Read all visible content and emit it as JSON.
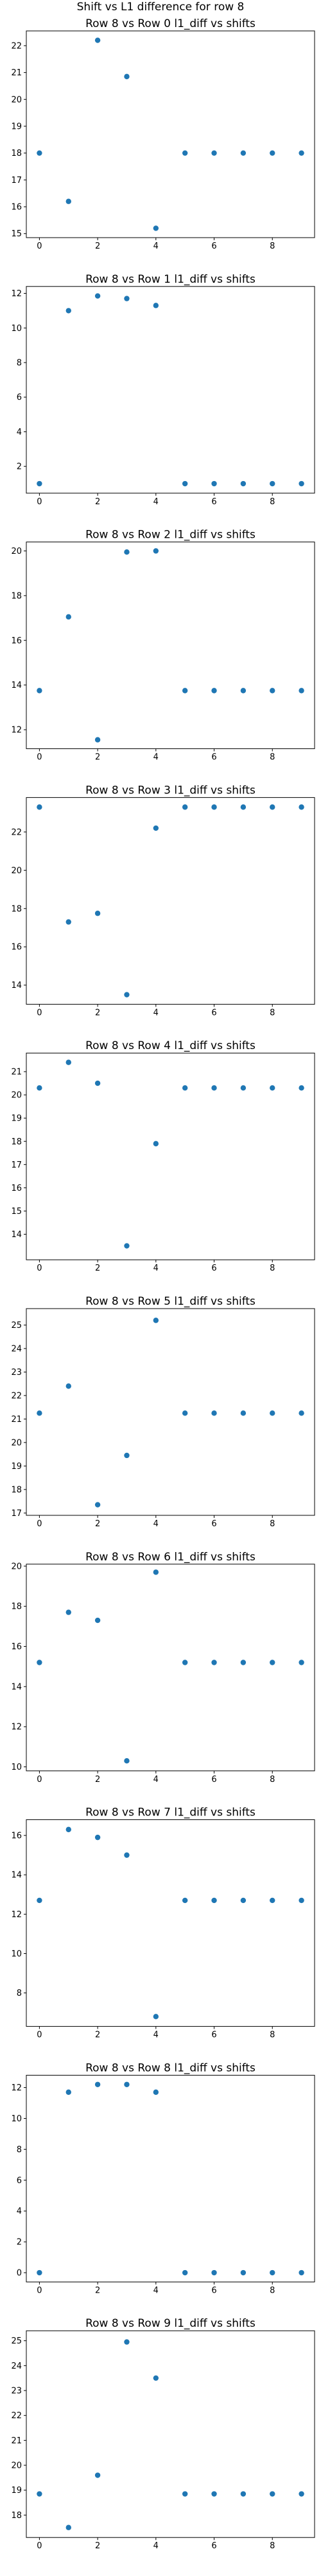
{
  "suptitle": "Shift vs L1 difference for row 8",
  "colors": {
    "marker": "#1f77b4",
    "axes": "#000000",
    "background": "#ffffff"
  },
  "chart_data": [
    {
      "type": "scatter",
      "title": "Row 8 vs Row 0 l1_diff vs shifts",
      "x": [
        0,
        1,
        2,
        3,
        4,
        5,
        6,
        7,
        8,
        9
      ],
      "y": [
        18.0,
        16.2,
        22.2,
        20.85,
        15.2,
        18.0,
        18.0,
        18.0,
        18.0,
        18.0
      ],
      "xlim": [
        -0.45,
        9.45
      ],
      "ylim": [
        14.85,
        22.55
      ],
      "xticks": [
        0,
        2,
        4,
        6,
        8
      ],
      "yticks": [
        15,
        16,
        17,
        18,
        19,
        20,
        21,
        22
      ],
      "grid": false,
      "xlabel": "",
      "ylabel": ""
    },
    {
      "type": "scatter",
      "title": "Row 8 vs Row 1 l1_diff vs shifts",
      "x": [
        0,
        1,
        2,
        3,
        4,
        5,
        6,
        7,
        8,
        9
      ],
      "y": [
        1.0,
        11.0,
        11.85,
        11.7,
        11.3,
        1.0,
        1.0,
        1.0,
        1.0,
        1.0
      ],
      "xlim": [
        -0.45,
        9.45
      ],
      "ylim": [
        0.45,
        12.4
      ],
      "xticks": [
        0,
        2,
        4,
        6,
        8
      ],
      "yticks": [
        2,
        4,
        6,
        8,
        10,
        12
      ],
      "grid": false,
      "xlabel": "",
      "ylabel": ""
    },
    {
      "type": "scatter",
      "title": "Row 8 vs Row 2 l1_diff vs shifts",
      "x": [
        0,
        1,
        2,
        3,
        4,
        5,
        6,
        7,
        8,
        9
      ],
      "y": [
        13.75,
        17.05,
        11.55,
        19.95,
        20.0,
        13.75,
        13.75,
        13.75,
        13.75,
        13.75
      ],
      "xlim": [
        -0.45,
        9.45
      ],
      "ylim": [
        11.15,
        20.4
      ],
      "xticks": [
        0,
        2,
        4,
        6,
        8
      ],
      "yticks": [
        12,
        14,
        16,
        18,
        20
      ],
      "grid": false,
      "xlabel": "",
      "ylabel": ""
    },
    {
      "type": "scatter",
      "title": "Row 8 vs Row 3 l1_diff vs shifts",
      "x": [
        0,
        1,
        2,
        3,
        4,
        5,
        6,
        7,
        8,
        9
      ],
      "y": [
        23.3,
        17.3,
        17.75,
        13.5,
        22.2,
        23.3,
        23.3,
        23.3,
        23.3,
        23.3
      ],
      "xlim": [
        -0.45,
        9.45
      ],
      "ylim": [
        13.0,
        23.8
      ],
      "xticks": [
        0,
        2,
        4,
        6,
        8
      ],
      "yticks": [
        14,
        16,
        18,
        20,
        22
      ],
      "grid": false,
      "xlabel": "",
      "ylabel": ""
    },
    {
      "type": "scatter",
      "title": "Row 8 vs Row 4 l1_diff vs shifts",
      "x": [
        0,
        1,
        2,
        3,
        4,
        5,
        6,
        7,
        8,
        9
      ],
      "y": [
        20.3,
        21.4,
        20.5,
        13.5,
        17.9,
        20.3,
        20.3,
        20.3,
        20.3,
        20.3
      ],
      "xlim": [
        -0.45,
        9.45
      ],
      "ylim": [
        12.9,
        21.8
      ],
      "xticks": [
        0,
        2,
        4,
        6,
        8
      ],
      "yticks": [
        14,
        15,
        16,
        17,
        18,
        19,
        20,
        21
      ],
      "grid": false,
      "xlabel": "",
      "ylabel": ""
    },
    {
      "type": "scatter",
      "title": "Row 8 vs Row 5 l1_diff vs shifts",
      "x": [
        0,
        1,
        2,
        3,
        4,
        5,
        6,
        7,
        8,
        9
      ],
      "y": [
        21.25,
        22.4,
        17.35,
        19.45,
        25.2,
        21.25,
        21.25,
        21.25,
        21.25,
        21.25
      ],
      "xlim": [
        -0.45,
        9.45
      ],
      "ylim": [
        16.9,
        25.7
      ],
      "xticks": [
        0,
        2,
        4,
        6,
        8
      ],
      "yticks": [
        17,
        18,
        19,
        20,
        21,
        22,
        23,
        24,
        25
      ],
      "grid": false,
      "xlabel": "",
      "ylabel": ""
    },
    {
      "type": "scatter",
      "title": "Row 8 vs Row 6 l1_diff vs shifts",
      "x": [
        0,
        1,
        2,
        3,
        4,
        5,
        6,
        7,
        8,
        9
      ],
      "y": [
        15.2,
        17.7,
        17.3,
        10.3,
        19.7,
        15.2,
        15.2,
        15.2,
        15.2,
        15.2
      ],
      "xlim": [
        -0.45,
        9.45
      ],
      "ylim": [
        9.8,
        20.1
      ],
      "xticks": [
        0,
        2,
        4,
        6,
        8
      ],
      "yticks": [
        10,
        12,
        14,
        16,
        18,
        20
      ],
      "grid": false,
      "xlabel": "",
      "ylabel": ""
    },
    {
      "type": "scatter",
      "title": "Row 8 vs Row 7 l1_diff vs shifts",
      "x": [
        0,
        1,
        2,
        3,
        4,
        5,
        6,
        7,
        8,
        9
      ],
      "y": [
        12.7,
        16.3,
        15.9,
        15.0,
        6.8,
        12.7,
        12.7,
        12.7,
        12.7,
        12.7
      ],
      "xlim": [
        -0.45,
        9.45
      ],
      "ylim": [
        6.3,
        16.8
      ],
      "xticks": [
        0,
        2,
        4,
        6,
        8
      ],
      "yticks": [
        8,
        10,
        12,
        14,
        16
      ],
      "grid": false,
      "xlabel": "",
      "ylabel": ""
    },
    {
      "type": "scatter",
      "title": "Row 8 vs Row 8 l1_diff vs shifts",
      "x": [
        0,
        1,
        2,
        3,
        4,
        5,
        6,
        7,
        8,
        9
      ],
      "y": [
        0.0,
        11.7,
        12.2,
        12.2,
        11.7,
        0.0,
        0.0,
        0.0,
        0.0,
        0.0
      ],
      "xlim": [
        -0.45,
        9.45
      ],
      "ylim": [
        -0.6,
        12.8
      ],
      "xticks": [
        0,
        2,
        4,
        6,
        8
      ],
      "yticks": [
        0,
        2,
        4,
        6,
        8,
        10,
        12
      ],
      "grid": false,
      "xlabel": "",
      "ylabel": ""
    },
    {
      "type": "scatter",
      "title": "Row 8 vs Row 9 l1_diff vs shifts",
      "x": [
        0,
        1,
        2,
        3,
        4,
        5,
        6,
        7,
        8,
        9
      ],
      "y": [
        18.85,
        17.5,
        19.6,
        24.95,
        23.5,
        18.85,
        18.85,
        18.85,
        18.85,
        18.85
      ],
      "xlim": [
        -0.45,
        9.45
      ],
      "ylim": [
        17.1,
        25.4
      ],
      "xticks": [
        0,
        2,
        4,
        6,
        8
      ],
      "yticks": [
        18,
        19,
        20,
        21,
        22,
        23,
        24,
        25
      ],
      "grid": false,
      "xlabel": "",
      "ylabel": ""
    }
  ]
}
